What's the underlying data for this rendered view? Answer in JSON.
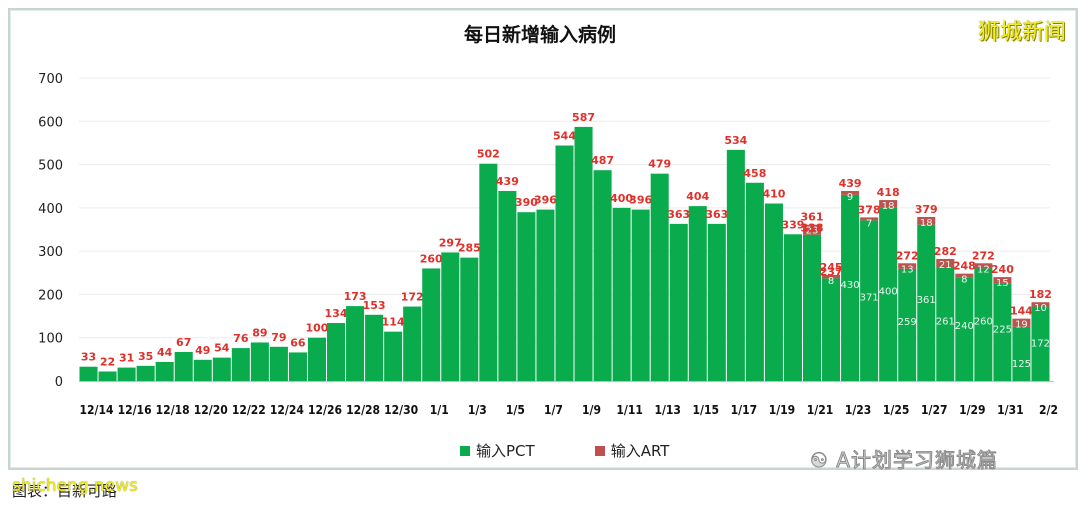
{
  "header": {
    "title": "每日新增输入病例",
    "brand": "狮城新闻"
  },
  "footer": {
    "source": "图表：目新可路",
    "watermark_site": "shicheng.news",
    "watermark_wechat": "A计划学习狮城篇"
  },
  "legend": [
    {
      "name": "输入PCT",
      "color": "#0aab4c"
    },
    {
      "name": "输入ART",
      "color": "#c0504d"
    }
  ],
  "colors": {
    "pct": "#0aab4c",
    "art": "#b9544f",
    "total_label": "#e0302a",
    "grid": "#ececec"
  },
  "chart_data": {
    "type": "bar",
    "stacked": true,
    "title": "每日新增输入病例",
    "xlabel": "",
    "ylabel": "",
    "ylim": [
      0,
      700
    ],
    "yticks": [
      0,
      100,
      200,
      300,
      400,
      500,
      600,
      700
    ],
    "grid": true,
    "legend_position": "bottom",
    "categories": [
      "12/14",
      "12/15",
      "12/16",
      "12/17",
      "12/18",
      "12/19",
      "12/20",
      "12/21",
      "12/22",
      "12/23",
      "12/24",
      "12/25",
      "12/26",
      "12/27",
      "12/28",
      "12/29",
      "12/30",
      "12/31",
      "1/1",
      "1/2",
      "1/3",
      "1/4",
      "1/5",
      "1/6",
      "1/7",
      "1/8",
      "1/9",
      "1/10",
      "1/11",
      "1/12",
      "1/13",
      "1/14",
      "1/15",
      "1/16",
      "1/17",
      "1/18",
      "1/19",
      "1/20",
      "1/21",
      "1/22",
      "1/23",
      "1/24",
      "1/25",
      "1/26",
      "1/27",
      "1/28",
      "1/29",
      "1/30",
      "1/31",
      "2/1",
      "2/2"
    ],
    "xtick_labels": [
      "12/14",
      "12/16",
      "12/18",
      "12/20",
      "12/22",
      "12/24",
      "12/26",
      "12/28",
      "12/30",
      "1/1",
      "1/3",
      "1/5",
      "1/7",
      "1/9",
      "1/11",
      "1/13",
      "1/15",
      "1/17",
      "1/19",
      "1/21",
      "1/23",
      "1/25",
      "1/27",
      "1/29",
      "1/31",
      "2/2"
    ],
    "series": [
      {
        "name": "输入PCT",
        "values": [
          33,
          22,
          31,
          35,
          44,
          67,
          49,
          54,
          76,
          89,
          79,
          66,
          100,
          134,
          173,
          153,
          114,
          172,
          260,
          297,
          285,
          502,
          439,
          390,
          396,
          544,
          587,
          487,
          400,
          396,
          479,
          363,
          404,
          363,
          534,
          458,
          410,
          339,
          338,
          237,
          430,
          371,
          400,
          259,
          361,
          261,
          240,
          260,
          225,
          125,
          172
        ]
      },
      {
        "name": "输入ART",
        "values": [
          0,
          0,
          0,
          0,
          0,
          0,
          0,
          0,
          0,
          0,
          0,
          0,
          0,
          0,
          0,
          0,
          0,
          0,
          0,
          0,
          0,
          0,
          0,
          0,
          0,
          0,
          0,
          0,
          0,
          0,
          0,
          0,
          0,
          0,
          0,
          0,
          0,
          0,
          23,
          8,
          9,
          7,
          18,
          13,
          18,
          21,
          8,
          12,
          15,
          19,
          10
        ]
      }
    ],
    "totals": [
      33,
      22,
      31,
      35,
      44,
      67,
      49,
      54,
      76,
      89,
      79,
      66,
      100,
      134,
      173,
      153,
      114,
      172,
      260,
      297,
      285,
      502,
      439,
      390,
      396,
      544,
      587,
      487,
      400,
      396,
      479,
      363,
      404,
      363,
      534,
      458,
      410,
      339,
      361,
      245,
      439,
      378,
      418,
      272,
      379,
      282,
      248,
      272,
      240,
      144,
      182
    ]
  }
}
